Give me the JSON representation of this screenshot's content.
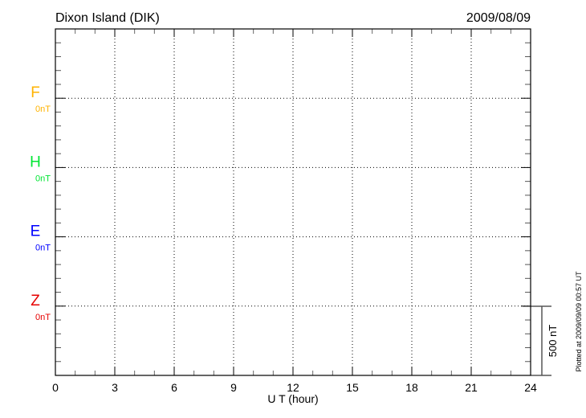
{
  "chart_data": {
    "type": "line",
    "title": "Dixon Island (DIK)",
    "date": "2009/08/09",
    "xlabel": "U T (hour)",
    "xlim": [
      0,
      24
    ],
    "x_ticks": [
      "0",
      "3",
      "6",
      "9",
      "12",
      "15",
      "18",
      "21",
      "24"
    ],
    "grid": true,
    "panels": [
      {
        "name": "F",
        "offset_label": "0nT",
        "color": "#ffb300"
      },
      {
        "name": "H",
        "offset_label": "0nT",
        "color": "#00e633"
      },
      {
        "name": "E",
        "offset_label": "0nT",
        "color": "#0000ff"
      },
      {
        "name": "Z",
        "offset_label": "0nT",
        "color": "#e60000"
      }
    ],
    "series": [],
    "scale_bar_label": "500 nT",
    "scale_bar_nT": 500,
    "footnote": "Plotted at 2009/09/09 00:57 UT"
  }
}
